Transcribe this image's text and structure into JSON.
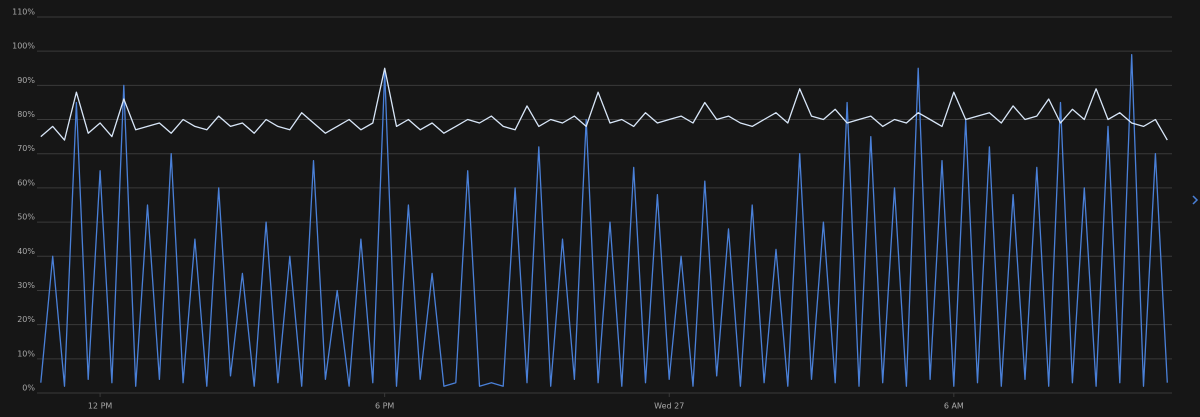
{
  "chart_data": {
    "type": "line",
    "x": [
      10.75,
      11,
      11.25,
      11.5,
      11.75,
      12,
      12.25,
      12.5,
      12.75,
      13,
      13.25,
      13.5,
      13.75,
      14,
      14.25,
      14.5,
      14.75,
      15,
      15.25,
      15.5,
      15.75,
      16,
      16.25,
      16.5,
      16.75,
      17,
      17.25,
      17.5,
      17.75,
      18,
      18.25,
      18.5,
      18.75,
      19,
      19.25,
      19.5,
      19.75,
      20,
      20.25,
      20.5,
      20.75,
      21,
      21.25,
      21.5,
      21.75,
      22,
      22.25,
      22.5,
      22.75,
      23,
      23.25,
      23.5,
      23.75,
      24,
      24.25,
      24.5,
      24.75,
      25,
      25.25,
      25.5,
      25.75,
      26,
      26.25,
      26.5,
      26.75,
      27,
      27.25,
      27.5,
      27.75,
      28,
      28.25,
      28.5,
      28.75,
      29,
      29.25,
      29.5,
      29.75,
      30,
      30.25,
      30.5,
      30.75,
      31,
      31.25,
      31.5,
      31.75,
      32,
      32.25,
      32.5,
      32.75,
      33,
      33.25,
      33.5,
      33.75,
      34,
      34.25,
      34.5
    ],
    "series": [
      {
        "color": "#4a80d8",
        "values": [
          3,
          40,
          2,
          85,
          4,
          65,
          3,
          90,
          2,
          55,
          4,
          70,
          3,
          45,
          2,
          60,
          5,
          35,
          2,
          50,
          3,
          40,
          2,
          68,
          4,
          30,
          2,
          45,
          3,
          94,
          2,
          55,
          4,
          35,
          2,
          3,
          65,
          2,
          3,
          2,
          60,
          3,
          72,
          2,
          45,
          4,
          80,
          3,
          50,
          2,
          66,
          3,
          58,
          4,
          40,
          2,
          62,
          5,
          48,
          2,
          55,
          3,
          42,
          2,
          70,
          4,
          50,
          3,
          85,
          2,
          75,
          3,
          60,
          2,
          95,
          4,
          68,
          2,
          80,
          3,
          72,
          2,
          58,
          4,
          66,
          2,
          85,
          3,
          60,
          2,
          78,
          3,
          99,
          2,
          70,
          3
        ]
      },
      {
        "color": "#d8e6f8",
        "values": [
          75,
          78,
          74,
          88,
          76,
          79,
          75,
          86,
          77,
          78,
          79,
          76,
          80,
          78,
          77,
          81,
          78,
          79,
          76,
          80,
          78,
          77,
          82,
          79,
          76,
          78,
          80,
          77,
          79,
          95,
          78,
          80,
          77,
          79,
          76,
          78,
          80,
          79,
          81,
          78,
          77,
          84,
          78,
          80,
          79,
          81,
          78,
          88,
          79,
          80,
          78,
          82,
          79,
          80,
          81,
          79,
          85,
          80,
          81,
          79,
          78,
          80,
          82,
          79,
          89,
          81,
          80,
          83,
          79,
          80,
          81,
          78,
          80,
          79,
          82,
          80,
          78,
          88,
          80,
          81,
          82,
          79,
          84,
          80,
          81,
          86,
          79,
          83,
          80,
          89,
          80,
          82,
          79,
          78,
          80,
          74
        ]
      }
    ],
    "xlim": [
      10.67,
      34.6
    ],
    "xticks": [
      {
        "value": 12,
        "label": "12 PM"
      },
      {
        "value": 18,
        "label": "6 PM"
      },
      {
        "value": 24,
        "label": "Wed 27"
      },
      {
        "value": 30,
        "label": "6 AM"
      }
    ],
    "ylim": [
      0,
      110
    ],
    "yticks": [
      {
        "value": 0,
        "label": "0%"
      },
      {
        "value": 10,
        "label": "10%"
      },
      {
        "value": 20,
        "label": "20%"
      },
      {
        "value": 30,
        "label": "30%"
      },
      {
        "value": 40,
        "label": "40%"
      },
      {
        "value": 50,
        "label": "50%"
      },
      {
        "value": 60,
        "label": "60%"
      },
      {
        "value": 70,
        "label": "70%"
      },
      {
        "value": 80,
        "label": "80%"
      },
      {
        "value": 90,
        "label": "90%"
      },
      {
        "value": 100,
        "label": "100%"
      },
      {
        "value": 110,
        "label": "110%"
      }
    ],
    "grid": true
  }
}
